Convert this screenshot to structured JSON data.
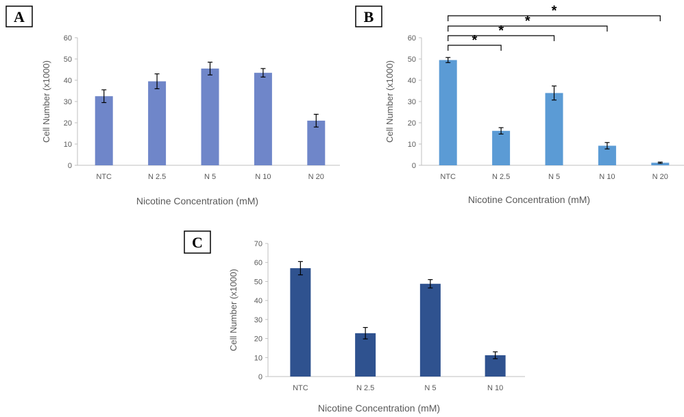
{
  "chart_data": [
    {
      "panel": "A",
      "type": "bar",
      "categories": [
        "NTC",
        "N 2.5",
        "N 5",
        "N 10",
        "N 20"
      ],
      "values": [
        32.5,
        39.5,
        45.5,
        43.5,
        21
      ],
      "errors": [
        3,
        3.5,
        3,
        2,
        3
      ],
      "color": "#6f86c9",
      "xlabel": "Nicotine Concentration (mM)",
      "ylabel": "Cell Number (x1000)",
      "ylim": [
        0,
        60
      ],
      "yticks": [
        0,
        10,
        20,
        30,
        40,
        50,
        60
      ],
      "grid": false,
      "significance": []
    },
    {
      "panel": "B",
      "type": "bar",
      "categories": [
        "NTC",
        "N 2.5",
        "N 5",
        "N 10",
        "N 20"
      ],
      "values": [
        49.5,
        16.2,
        34,
        9.2,
        1.2
      ],
      "errors": [
        1.2,
        1.5,
        3.3,
        1.5,
        0.3
      ],
      "color": "#5b9bd5",
      "xlabel": "Nicotine Concentration (mM)",
      "ylabel": "Cell Number (x1000)",
      "ylim": [
        0,
        60
      ],
      "yticks": [
        0,
        10,
        20,
        30,
        40,
        50,
        60
      ],
      "grid": false,
      "significance": [
        {
          "from": "NTC",
          "to": "N 2.5",
          "label": "*"
        },
        {
          "from": "NTC",
          "to": "N 5",
          "label": "*"
        },
        {
          "from": "NTC",
          "to": "N 10",
          "label": "*"
        },
        {
          "from": "NTC",
          "to": "N 20",
          "label": "*"
        }
      ]
    },
    {
      "panel": "C",
      "type": "bar",
      "categories": [
        "NTC",
        "N 2.5",
        "N 5",
        "N 10"
      ],
      "values": [
        57,
        22.8,
        48.8,
        11.2
      ],
      "errors": [
        3.5,
        3,
        2.2,
        1.8
      ],
      "color": "#2f528f",
      "xlabel": "Nicotine Concentration (mM)",
      "ylabel": "Cell Number (x1000)",
      "ylim": [
        0,
        70
      ],
      "yticks": [
        0,
        10,
        20,
        30,
        40,
        50,
        60,
        70
      ],
      "grid": false,
      "significance": []
    }
  ]
}
